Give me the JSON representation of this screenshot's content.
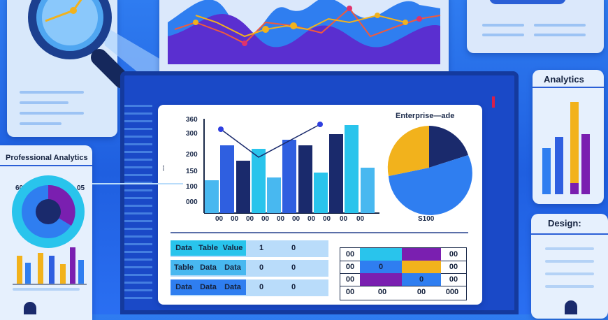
{
  "main_chart": {
    "y_ticks": [
      "360",
      "300",
      "200",
      "150",
      "100",
      "000"
    ],
    "y_axis_label": "...",
    "x_ticks": [
      "00",
      "00",
      "00",
      "00",
      "00",
      "00",
      "00",
      "00",
      "00",
      "00"
    ],
    "colors": {
      "dark": "#1a2a6c",
      "blue": "#2f5fe0",
      "cyan": "#29c4ec",
      "light": "#48b8f0"
    }
  },
  "pie_chart": {
    "title": "Enterprise—ade",
    "footer": "S100",
    "colors": [
      "#f2b21c",
      "#1a2a6c",
      "#2f7ef0"
    ]
  },
  "left_panel": {
    "title": "Professional Analytics",
    "left_value": "60",
    "right_value": "05"
  },
  "right_top_panel": {
    "title": "Analytics"
  },
  "right_bottom_panel": {
    "title": "Design:"
  },
  "table_left": {
    "rows": [
      [
        "Data",
        "Table",
        "Value",
        "1",
        "0"
      ],
      [
        "Table",
        "Data",
        "Data",
        "0",
        "0"
      ],
      [
        "Data",
        "Data",
        "Data",
        "0",
        "0"
      ]
    ]
  },
  "table_right": {
    "rows": [
      [
        "00",
        "00",
        "00"
      ],
      [
        "00",
        "00",
        "0"
      ],
      [
        "00",
        "00",
        "0"
      ],
      [
        "00",
        "00",
        "000"
      ]
    ]
  }
}
